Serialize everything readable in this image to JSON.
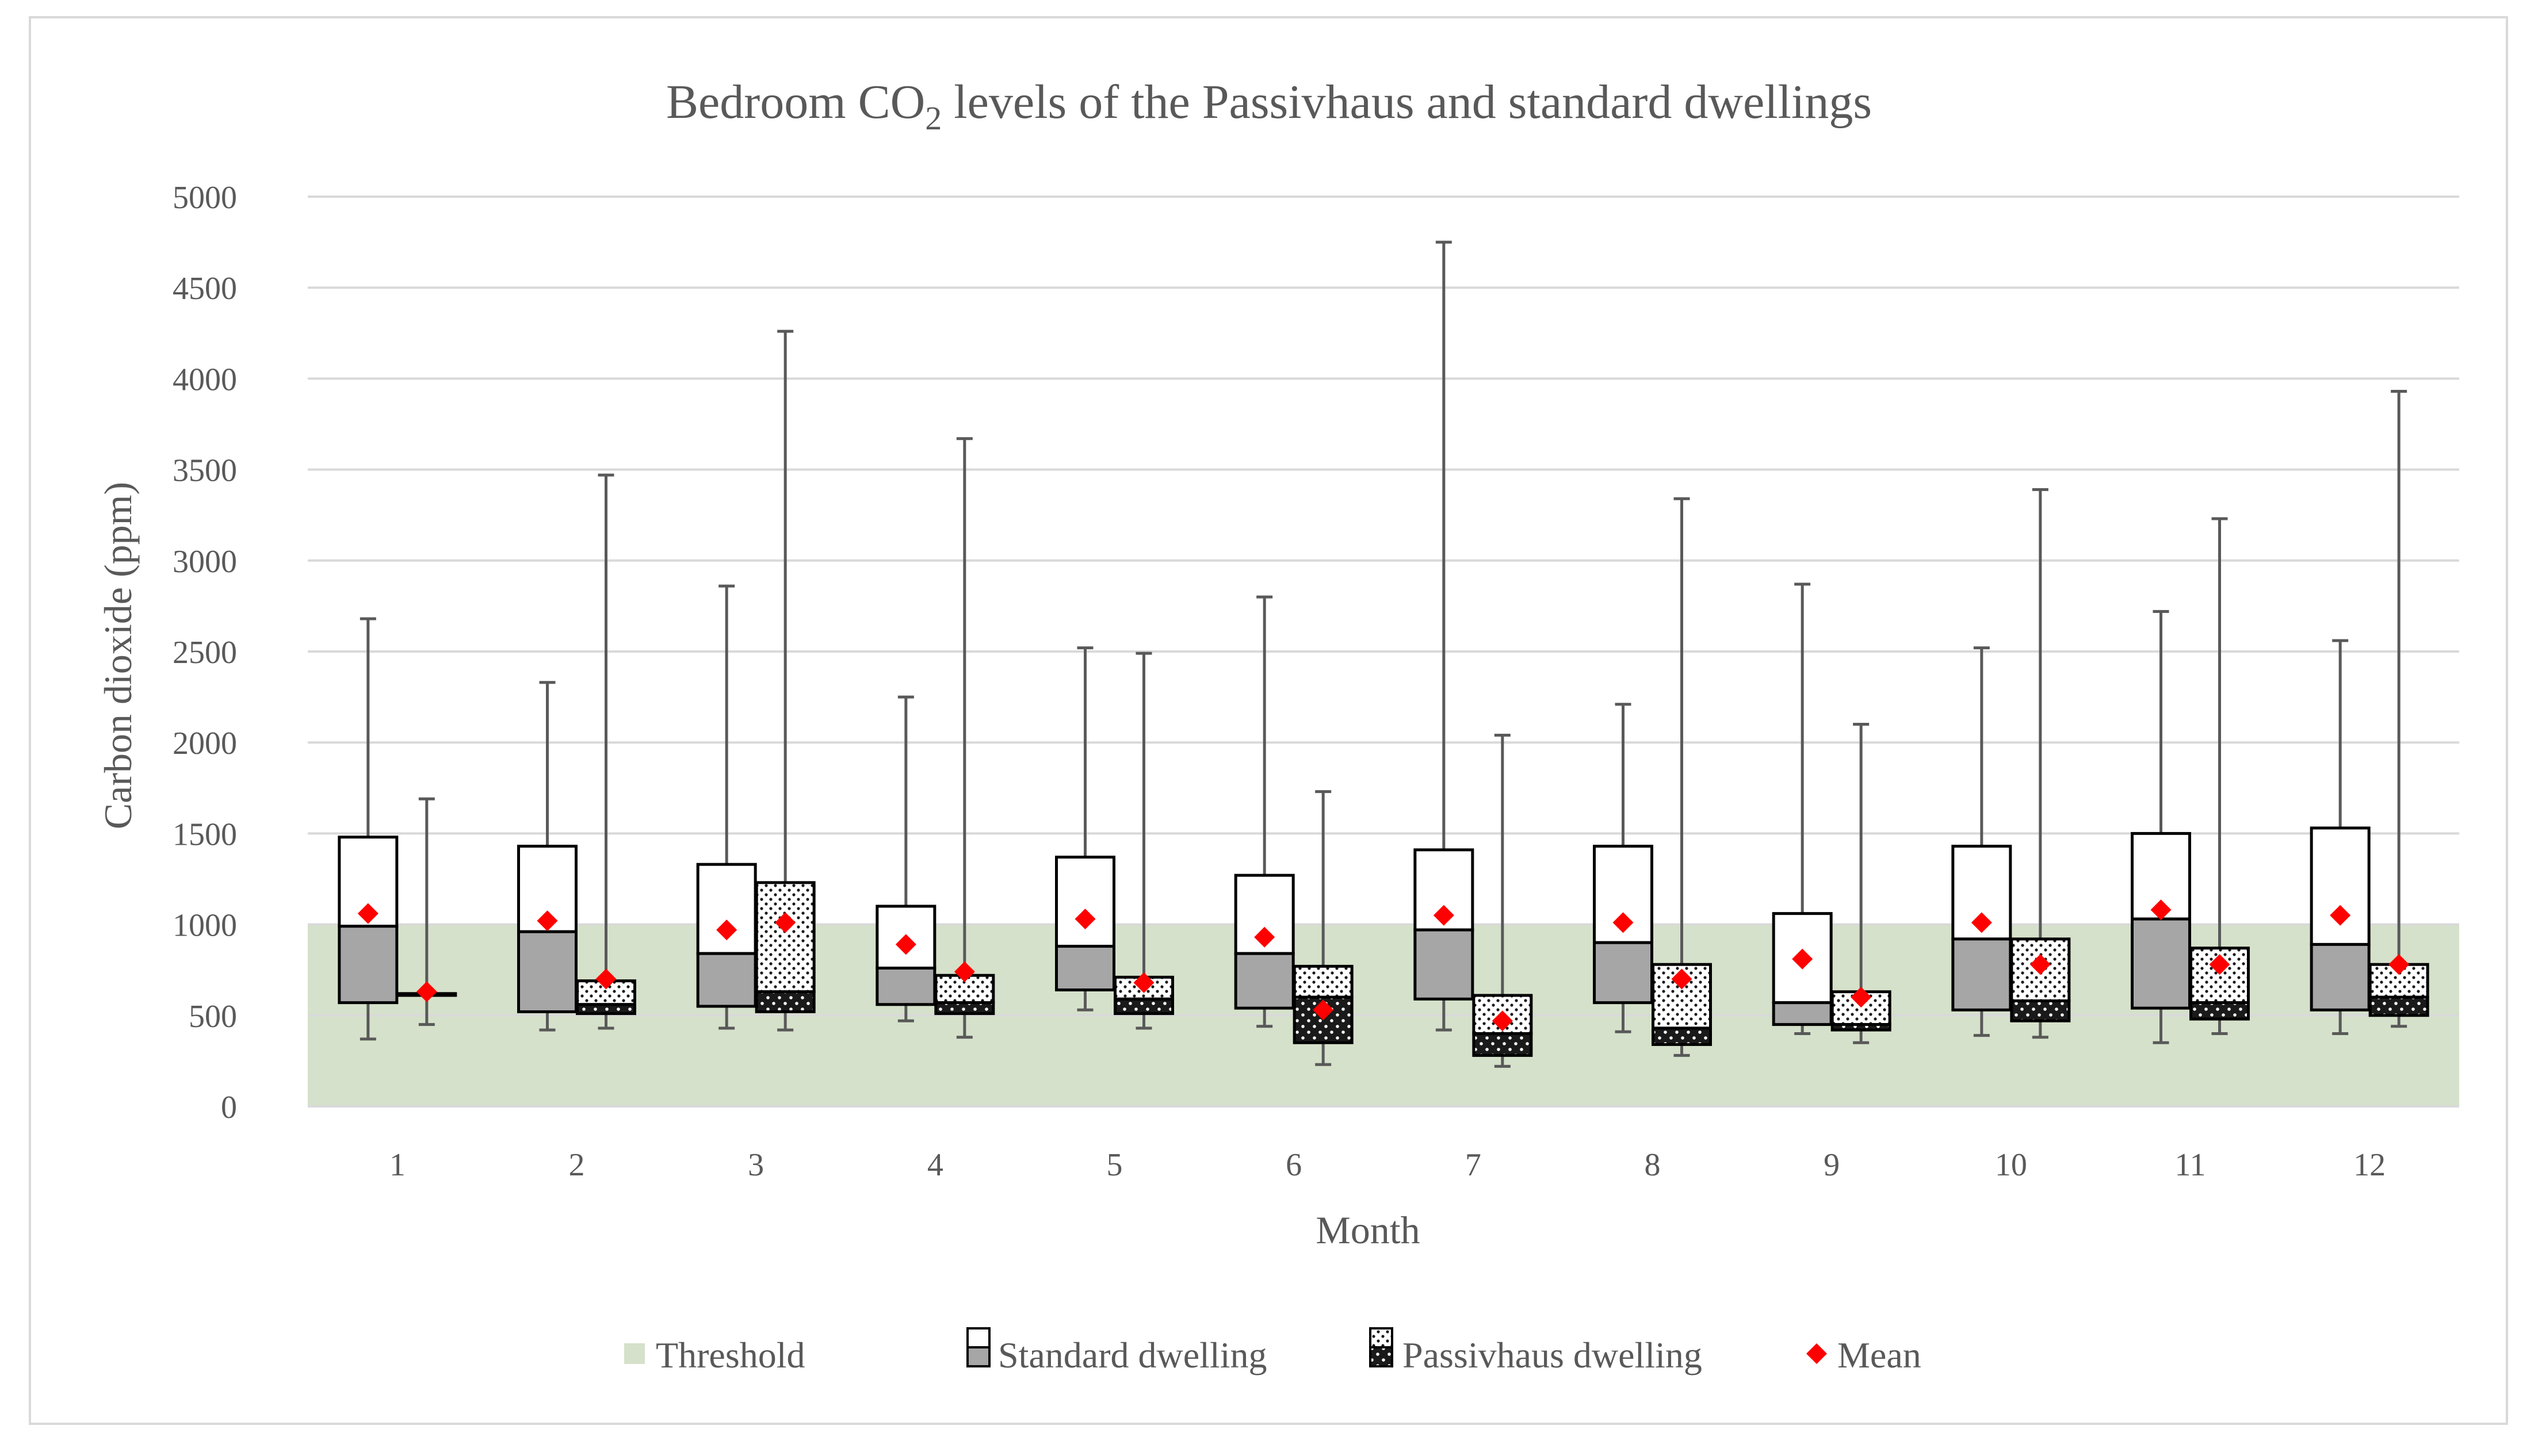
{
  "chart_data": {
    "type": "boxplot",
    "title": {
      "prefix": "Bedroom CO",
      "subscript": "2",
      "suffix": " levels of the Passivhaus and standard dwellings"
    },
    "xlabel": "Month",
    "ylabel": "Carbon dioxide (ppm)",
    "ylim": [
      0,
      5000
    ],
    "yticks": [
      0,
      500,
      1000,
      1500,
      2000,
      2500,
      3000,
      3500,
      4000,
      4500,
      5000
    ],
    "categories": [
      "1",
      "2",
      "3",
      "4",
      "5",
      "6",
      "7",
      "8",
      "9",
      "10",
      "11",
      "12"
    ],
    "threshold": 1000,
    "grid": true,
    "legend_position": "bottom",
    "legend": {
      "threshold": "Threshold",
      "standard": "Standard dwelling",
      "passivhaus": "Passivhaus dwelling",
      "mean": "Mean"
    },
    "colors": {
      "threshold": "#d5e1ca",
      "lower_box_standard": "#a6a6a6",
      "upper_box": "#ffffff",
      "passivhaus_lower": "#1a1a1a",
      "mean_marker": "#ff0000",
      "whisker": "#595959",
      "grid": "#d9d9d9"
    },
    "series": [
      {
        "name": "Standard dwelling",
        "min": [
          370,
          420,
          430,
          470,
          530,
          440,
          420,
          410,
          400,
          390,
          350,
          400
        ],
        "q1": [
          570,
          520,
          550,
          560,
          640,
          540,
          590,
          570,
          450,
          530,
          540,
          530
        ],
        "median": [
          990,
          960,
          840,
          760,
          880,
          840,
          970,
          900,
          570,
          920,
          1030,
          890
        ],
        "q3": [
          1480,
          1430,
          1330,
          1100,
          1370,
          1270,
          1410,
          1430,
          1060,
          1430,
          1500,
          1530
        ],
        "max": [
          2680,
          2330,
          2860,
          2250,
          2520,
          2800,
          4750,
          2210,
          2870,
          2520,
          2720,
          2560
        ],
        "mean": [
          1060,
          1020,
          970,
          890,
          1030,
          930,
          1050,
          1010,
          810,
          1010,
          1080,
          1050
        ]
      },
      {
        "name": "Passivhaus dwelling",
        "min": [
          450,
          430,
          420,
          380,
          430,
          230,
          220,
          280,
          350,
          380,
          400,
          440
        ],
        "q1": [
          610,
          510,
          520,
          510,
          510,
          350,
          280,
          340,
          420,
          470,
          480,
          500
        ],
        "median": [
          610,
          560,
          630,
          570,
          590,
          600,
          400,
          430,
          450,
          580,
          570,
          600
        ],
        "q3": [
          620,
          690,
          1230,
          720,
          710,
          770,
          610,
          780,
          630,
          920,
          870,
          780
        ],
        "max": [
          1690,
          3470,
          4260,
          3670,
          2490,
          1730,
          2040,
          3340,
          2100,
          3390,
          3230,
          3930
        ],
        "mean": [
          630,
          700,
          1010,
          740,
          680,
          530,
          470,
          700,
          600,
          780,
          780,
          780
        ]
      }
    ]
  }
}
